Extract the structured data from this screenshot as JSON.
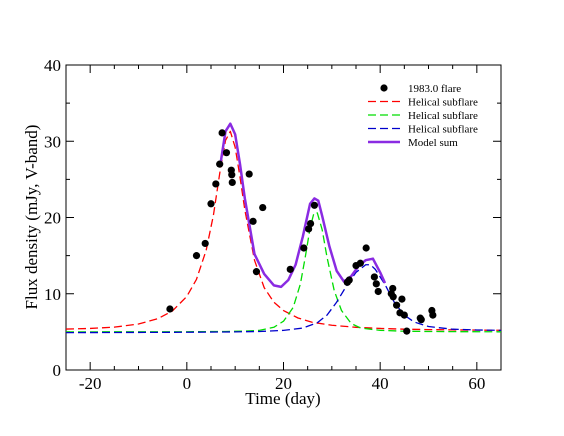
{
  "chart_data": {
    "type": "scatter",
    "xlabel": "Time (day)",
    "ylabel": "Flux density (mJy, V-band)",
    "xlim": [
      -25,
      65
    ],
    "ylim": [
      0,
      40
    ],
    "xticks": [
      -20,
      0,
      20,
      40,
      60
    ],
    "yticks": [
      0,
      10,
      20,
      30,
      40
    ],
    "grid": false,
    "legend_position": "top-right",
    "observations": {
      "name": "1983.0 flare",
      "color": "#000000",
      "points": [
        [
          -3.5,
          8.0
        ],
        [
          2,
          15.0
        ],
        [
          3.8,
          16.6
        ],
        [
          5,
          21.8
        ],
        [
          6,
          24.4
        ],
        [
          6.8,
          27.0
        ],
        [
          7.3,
          31.1
        ],
        [
          8.2,
          28.5
        ],
        [
          9.2,
          26.2
        ],
        [
          9.3,
          25.6
        ],
        [
          9.4,
          24.6
        ],
        [
          12.9,
          25.7
        ],
        [
          13.7,
          19.5
        ],
        [
          14.4,
          12.9
        ],
        [
          15.7,
          21.3
        ],
        [
          21.4,
          13.2
        ],
        [
          24.2,
          16.0
        ],
        [
          25.2,
          18.5
        ],
        [
          25.6,
          19.2
        ],
        [
          26.4,
          21.6
        ],
        [
          33.2,
          11.5
        ],
        [
          33.6,
          11.8
        ],
        [
          35,
          13.7
        ],
        [
          35.9,
          14.0
        ],
        [
          37.1,
          16.0
        ],
        [
          38.8,
          12.2
        ],
        [
          39.2,
          11.3
        ],
        [
          39.6,
          10.3
        ],
        [
          42.3,
          10.0
        ],
        [
          42.6,
          10.7
        ],
        [
          42.7,
          9.6
        ],
        [
          43.4,
          8.5
        ],
        [
          44.1,
          7.5
        ],
        [
          44.5,
          9.3
        ],
        [
          45,
          7.2
        ],
        [
          45.5,
          5.1
        ],
        [
          48.3,
          6.8
        ],
        [
          48.5,
          6.6
        ],
        [
          50.7,
          7.8
        ],
        [
          50.9,
          7.2
        ]
      ]
    },
    "series": [
      {
        "name": "Helical subflare",
        "color": "#ff0000",
        "style": "dashed",
        "points": [
          [
            -25,
            5.37
          ],
          [
            -20,
            5.45
          ],
          [
            -15,
            5.62
          ],
          [
            -10,
            6.03
          ],
          [
            -6,
            6.73
          ],
          [
            -3,
            7.73
          ],
          [
            0,
            9.65
          ],
          [
            2,
            11.9
          ],
          [
            4,
            15.7
          ],
          [
            5.5,
            20.3
          ],
          [
            7,
            26.6
          ],
          [
            8,
            30.1
          ],
          [
            9,
            31.3
          ],
          [
            10,
            29.2
          ],
          [
            11,
            25.3
          ],
          [
            12,
            21.0
          ],
          [
            14,
            14.4
          ],
          [
            16,
            10.8
          ],
          [
            18,
            8.9
          ],
          [
            20,
            7.8
          ],
          [
            23,
            6.82
          ],
          [
            26,
            6.25
          ],
          [
            30,
            5.87
          ],
          [
            35,
            5.6
          ],
          [
            40,
            5.45
          ],
          [
            45,
            5.35
          ],
          [
            50,
            5.3
          ],
          [
            55,
            5.26
          ],
          [
            60,
            5.23
          ],
          [
            65,
            5.21
          ]
        ]
      },
      {
        "name": "Helical subflare",
        "color": "#00dd00",
        "style": "dashed",
        "points": [
          [
            -25,
            5.0
          ],
          [
            0,
            5.02
          ],
          [
            8,
            5.05
          ],
          [
            12,
            5.1
          ],
          [
            15,
            5.2
          ],
          [
            18,
            5.6
          ],
          [
            20,
            6.4
          ],
          [
            22,
            8.2
          ],
          [
            23.5,
            11.3
          ],
          [
            24.5,
            14.8
          ],
          [
            25.5,
            18.6
          ],
          [
            26.3,
            20.6
          ],
          [
            27,
            20.6
          ],
          [
            28,
            18.4
          ],
          [
            29,
            14.8
          ],
          [
            30.5,
            10.4
          ],
          [
            32,
            7.8
          ],
          [
            34,
            6.1
          ],
          [
            36,
            5.5
          ],
          [
            40,
            5.2
          ],
          [
            45,
            5.08
          ],
          [
            55,
            5.03
          ],
          [
            65,
            5.01
          ]
        ]
      },
      {
        "name": "Helical subflare",
        "color": "#0000cc",
        "style": "dashed",
        "points": [
          [
            -25,
            4.9
          ],
          [
            0,
            4.95
          ],
          [
            10,
            5.0
          ],
          [
            15,
            5.05
          ],
          [
            20,
            5.2
          ],
          [
            24,
            5.5
          ],
          [
            27,
            6.2
          ],
          [
            29,
            7.2
          ],
          [
            31,
            8.9
          ],
          [
            33,
            11.0
          ],
          [
            35,
            12.8
          ],
          [
            37,
            13.8
          ],
          [
            38,
            13.8
          ],
          [
            39,
            13.2
          ],
          [
            41,
            11.2
          ],
          [
            43,
            8.8
          ],
          [
            45,
            7.2
          ],
          [
            47,
            6.3
          ],
          [
            50,
            5.7
          ],
          [
            55,
            5.35
          ],
          [
            60,
            5.25
          ],
          [
            65,
            5.2
          ]
        ]
      },
      {
        "name": "Model sum",
        "color": "#8a2be2",
        "style": "solid",
        "points": [
          [
            7,
            27.2
          ],
          [
            8,
            31.3
          ],
          [
            9,
            32.3
          ],
          [
            10,
            30.9
          ],
          [
            11,
            27.0
          ],
          [
            12,
            22.5
          ],
          [
            14,
            15.2
          ],
          [
            16,
            12.6
          ],
          [
            18,
            11.1
          ],
          [
            19.5,
            10.9
          ],
          [
            21,
            11.8
          ],
          [
            22.5,
            13.8
          ],
          [
            24,
            17.5
          ],
          [
            25.5,
            21.8
          ],
          [
            26.4,
            22.5
          ],
          [
            27.2,
            22.2
          ],
          [
            28,
            20.2
          ],
          [
            29.5,
            16.2
          ],
          [
            31,
            13.0
          ],
          [
            32.5,
            11.6
          ],
          [
            34,
            12.3
          ],
          [
            35.5,
            13.6
          ],
          [
            37,
            14.4
          ],
          [
            38.5,
            14.6
          ],
          [
            40,
            12.8
          ],
          [
            41,
            11.4
          ]
        ]
      }
    ]
  }
}
